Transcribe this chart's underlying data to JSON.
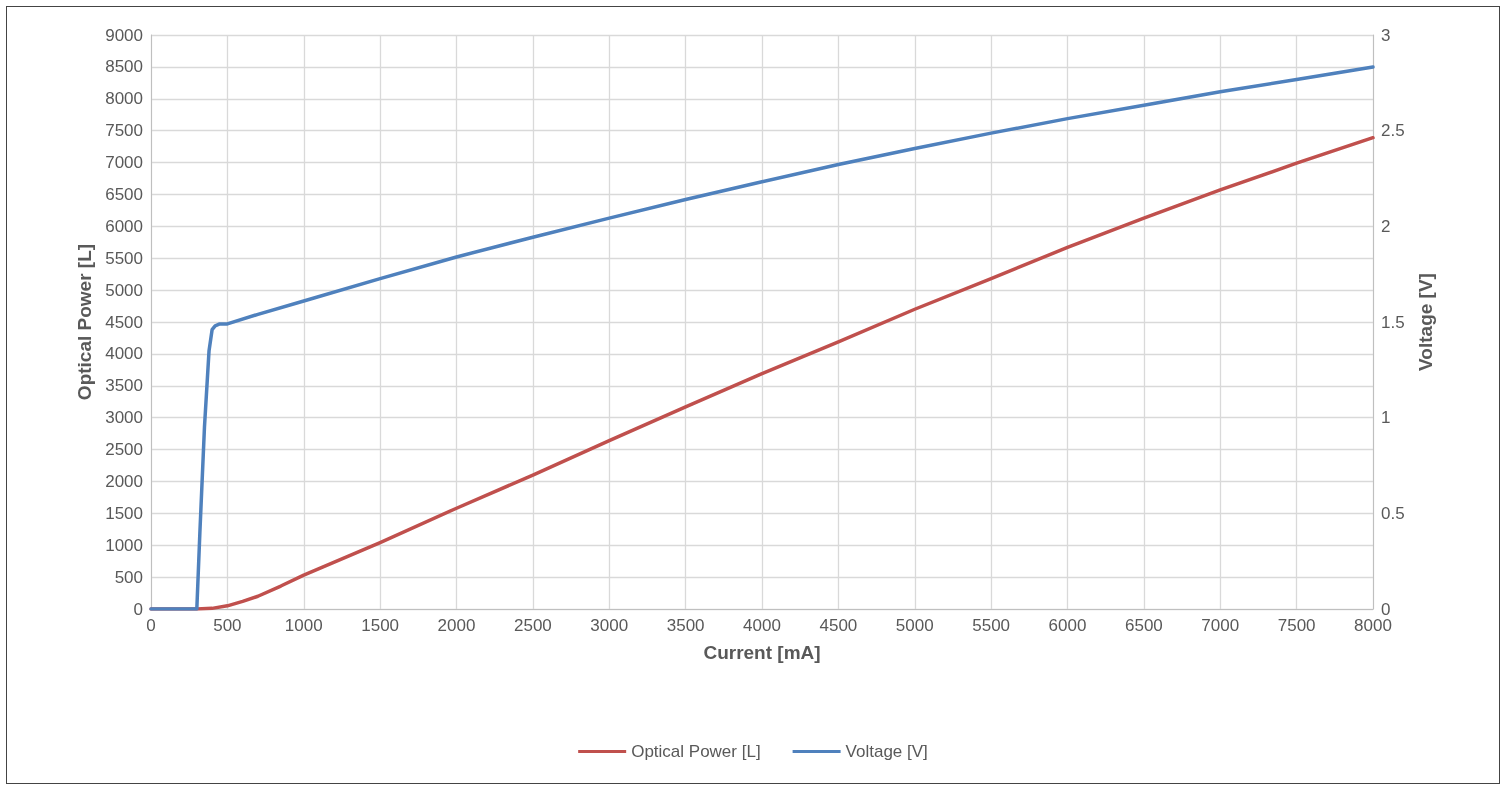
{
  "chart_data": {
    "type": "line",
    "xlabel": "Current [mA]",
    "ylabel": "Optical Power [L]",
    "y2label": "Voltage [V]",
    "xlim": [
      0,
      8000
    ],
    "xticks": [
      0,
      500,
      1000,
      1500,
      2000,
      2500,
      3000,
      3500,
      4000,
      4500,
      5000,
      5500,
      6000,
      6500,
      7000,
      7500,
      8000
    ],
    "ylim": [
      0,
      9000
    ],
    "yticks": [
      0,
      500,
      1000,
      1500,
      2000,
      2500,
      3000,
      3500,
      4000,
      4500,
      5000,
      5500,
      6000,
      6500,
      7000,
      7500,
      8000,
      8500,
      9000
    ],
    "y2lim": [
      0,
      3
    ],
    "y2ticks": [
      0,
      0.5,
      1,
      1.5,
      2,
      2.5,
      3
    ],
    "grid": true,
    "legend": "bottom",
    "marker": "none",
    "line_style": "solid",
    "series": [
      {
        "name": "Optical Power [L]",
        "color": "#c0504d",
        "x": [
          0,
          200,
          300,
          400,
          500,
          600,
          700,
          850,
          1000,
          1500,
          2000,
          2500,
          3000,
          3500,
          4000,
          4500,
          5000,
          5500,
          6000,
          6500,
          7000,
          7500,
          8000
        ],
        "values": [
          0,
          0,
          0,
          10,
          50,
          120,
          200,
          360,
          530,
          1040,
          1580,
          2100,
          2640,
          3170,
          3690,
          4190,
          4700,
          5180,
          5670,
          6130,
          6570,
          6990,
          7390
        ]
      },
      {
        "name": "Voltage [V]",
        "color": "#4f81bd",
        "axis": "y2",
        "x": [
          0,
          200,
          290,
          300,
          320,
          350,
          380,
          400,
          420,
          450,
          500,
          700,
          1000,
          1500,
          2000,
          2500,
          3000,
          3500,
          4000,
          4500,
          5000,
          5500,
          6000,
          6500,
          7000,
          7500,
          8000
        ],
        "values": [
          0,
          0,
          0,
          0,
          0.4,
          0.95,
          1.35,
          1.46,
          1.48,
          1.49,
          1.49,
          1.54,
          1.61,
          1.727,
          1.84,
          1.943,
          2.043,
          2.14,
          2.233,
          2.323,
          2.407,
          2.487,
          2.563,
          2.633,
          2.703,
          2.767,
          2.833
        ]
      }
    ]
  }
}
